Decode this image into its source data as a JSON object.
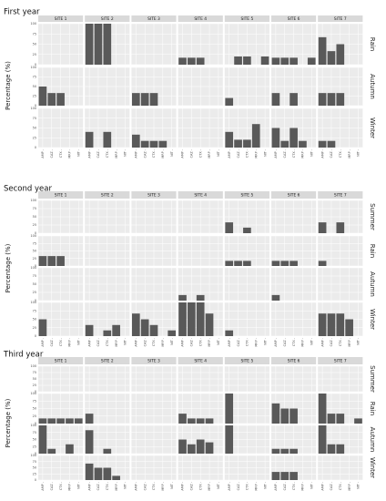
{
  "ylabel": "Percentage (%)",
  "sites": [
    "SITE 1",
    "SITE 2",
    "SITE 3",
    "SITE 4",
    "SITE 5",
    "SITE 6",
    "SITE 7"
  ],
  "antibiotics": [
    "AMP",
    "CAZ",
    "CTX",
    "MRP",
    "NIT"
  ],
  "colors": {
    "bar": "#595959",
    "panel": "#ebebeb",
    "grid": "#ffffff",
    "strip": "#d9d9d9"
  },
  "chart_data": [
    {
      "type": "bar",
      "title": "First year",
      "seasons": [
        "Rain",
        "Autumn",
        "Winter"
      ],
      "ylim": [
        0,
        100
      ],
      "yticks": [
        0,
        25,
        50,
        75,
        100
      ],
      "values": {
        "Rain": [
          [
            0,
            0,
            0,
            0,
            0
          ],
          [
            100,
            100,
            100,
            0,
            0
          ],
          [
            0,
            0,
            0,
            0,
            0
          ],
          [
            17,
            17,
            17,
            0,
            0
          ],
          [
            0,
            20,
            20,
            0,
            20
          ],
          [
            17,
            17,
            17,
            0,
            17
          ],
          [
            67,
            33,
            50,
            0,
            0
          ]
        ],
        "Autumn": [
          [
            50,
            33,
            33,
            0,
            0
          ],
          [
            0,
            0,
            0,
            0,
            0
          ],
          [
            33,
            33,
            33,
            0,
            0
          ],
          [
            0,
            0,
            0,
            0,
            0
          ],
          [
            20,
            0,
            0,
            0,
            0
          ],
          [
            33,
            0,
            33,
            0,
            0
          ],
          [
            33,
            33,
            33,
            0,
            0
          ]
        ],
        "Winter": [
          [
            0,
            0,
            0,
            0,
            0
          ],
          [
            40,
            0,
            40,
            0,
            0
          ],
          [
            33,
            17,
            17,
            17,
            0
          ],
          [
            0,
            0,
            0,
            0,
            0
          ],
          [
            40,
            20,
            20,
            60,
            0
          ],
          [
            50,
            17,
            50,
            17,
            0
          ],
          [
            17,
            17,
            0,
            0,
            0
          ]
        ]
      }
    },
    {
      "type": "bar",
      "title": "Second year",
      "seasons": [
        "Summer",
        "Rain",
        "Autumn",
        "Winter"
      ],
      "ylim": [
        0,
        100
      ],
      "yticks": [
        0,
        25,
        50,
        75,
        100
      ],
      "values": {
        "Summer": [
          [
            0,
            0,
            0,
            0,
            0
          ],
          [
            0,
            0,
            0,
            0,
            0
          ],
          [
            0,
            0,
            0,
            0,
            0
          ],
          [
            0,
            0,
            0,
            0,
            0
          ],
          [
            33,
            0,
            17,
            0,
            0
          ],
          [
            0,
            0,
            0,
            0,
            0
          ],
          [
            33,
            0,
            33,
            0,
            0
          ]
        ],
        "Rain": [
          [
            33,
            33,
            33,
            0,
            0
          ],
          [
            0,
            0,
            0,
            0,
            0
          ],
          [
            0,
            0,
            0,
            0,
            0
          ],
          [
            0,
            0,
            0,
            0,
            0
          ],
          [
            17,
            17,
            17,
            0,
            0
          ],
          [
            17,
            17,
            17,
            0,
            0
          ],
          [
            17,
            0,
            0,
            0,
            0
          ]
        ],
        "Autumn": [
          [
            0,
            0,
            0,
            0,
            0
          ],
          [
            0,
            0,
            0,
            0,
            0
          ],
          [
            0,
            0,
            0,
            0,
            0
          ],
          [
            17,
            0,
            17,
            0,
            0
          ],
          [
            0,
            0,
            0,
            0,
            0
          ],
          [
            17,
            0,
            0,
            0,
            0
          ],
          [
            0,
            0,
            0,
            0,
            0
          ]
        ],
        "Winter": [
          [
            50,
            0,
            0,
            0,
            0
          ],
          [
            33,
            0,
            17,
            33,
            0
          ],
          [
            67,
            50,
            33,
            0,
            17
          ],
          [
            100,
            100,
            100,
            67,
            0
          ],
          [
            17,
            0,
            0,
            0,
            0
          ],
          [
            0,
            0,
            0,
            0,
            0
          ],
          [
            67,
            67,
            67,
            50,
            0
          ]
        ]
      }
    },
    {
      "type": "bar",
      "title": "Third year",
      "seasons": [
        "Summer",
        "Rain",
        "Autumn",
        "Winter"
      ],
      "ylim": [
        0,
        100
      ],
      "yticks": [
        0,
        25,
        50,
        75,
        100
      ],
      "values": {
        "Summer": [
          [
            0,
            0,
            0,
            0,
            0
          ],
          [
            0,
            0,
            0,
            0,
            0
          ],
          [
            0,
            0,
            0,
            0,
            0
          ],
          [
            0,
            0,
            0,
            0,
            0
          ],
          [
            0,
            0,
            0,
            0,
            0
          ],
          [
            0,
            0,
            0,
            0,
            0
          ],
          [
            0,
            0,
            0,
            0,
            0
          ]
        ],
        "Rain": [
          [
            17,
            17,
            17,
            17,
            17
          ],
          [
            33,
            0,
            0,
            0,
            0
          ],
          [
            0,
            0,
            0,
            0,
            0
          ],
          [
            33,
            17,
            17,
            17,
            0
          ],
          [
            100,
            0,
            0,
            0,
            0
          ],
          [
            67,
            50,
            50,
            0,
            0
          ],
          [
            100,
            33,
            33,
            0,
            17
          ]
        ],
        "Autumn": [
          [
            100,
            17,
            0,
            33,
            0
          ],
          [
            83,
            0,
            17,
            0,
            0
          ],
          [
            0,
            0,
            0,
            0,
            0
          ],
          [
            50,
            33,
            50,
            40,
            0
          ],
          [
            100,
            0,
            0,
            0,
            0
          ],
          [
            17,
            17,
            17,
            0,
            0
          ],
          [
            100,
            33,
            33,
            0,
            0
          ]
        ],
        "Winter": [
          [
            0,
            0,
            0,
            0,
            0
          ],
          [
            67,
            50,
            50,
            17,
            0
          ],
          [
            0,
            0,
            0,
            0,
            0
          ],
          [
            0,
            0,
            0,
            0,
            0
          ],
          [
            0,
            0,
            0,
            0,
            0
          ],
          [
            33,
            33,
            33,
            0,
            0
          ],
          [
            0,
            0,
            0,
            0,
            0
          ]
        ]
      }
    }
  ]
}
